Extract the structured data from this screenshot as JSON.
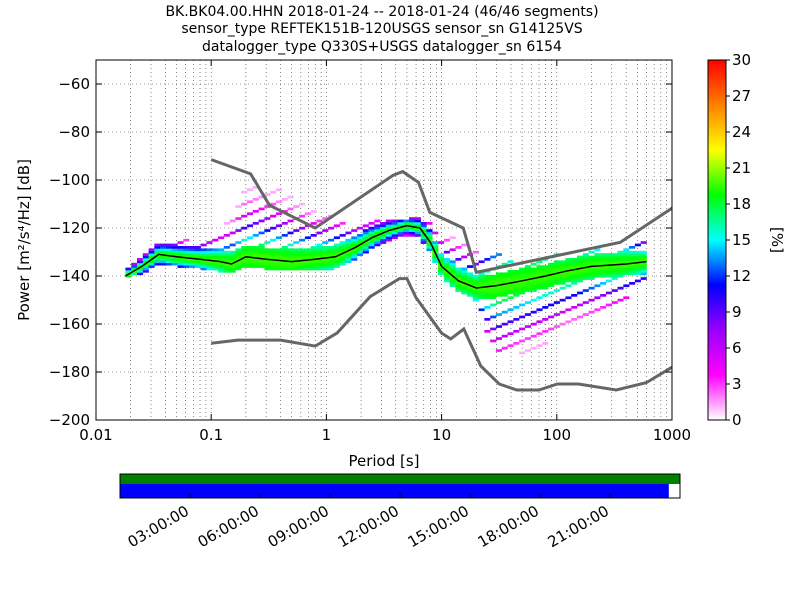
{
  "title_lines": [
    "BK.BK04.00.HHN   2018-01-24 -- 2018-01-24  (46/46 segments)",
    "sensor_type REFTEK151B-120USGS sensor_sn G14125VS",
    "datalogger_type Q330S+USGS datalogger_sn 6154"
  ],
  "chart_data": {
    "type": "heatmap",
    "xlabel": "Period [s]",
    "ylabel": "Power [m²/s⁴/Hz] [dB]",
    "xscale": "log",
    "xlim": [
      0.01,
      1000
    ],
    "ylim": [
      -200,
      -50
    ],
    "x_tick_labels": [
      "0.01",
      "0.1",
      "1",
      "10",
      "100",
      "1000"
    ],
    "y_tick_values": [
      -200,
      -180,
      -160,
      -140,
      -120,
      -100,
      -80,
      -60
    ],
    "y_tick_labels": [
      "−200",
      "−180",
      "−160",
      "−140",
      "−120",
      "−100",
      "−80",
      "−60"
    ],
    "colorbar": {
      "label": "[%]",
      "min": 0,
      "max": 30,
      "tick_labels": [
        "0",
        "3",
        "6",
        "9",
        "12",
        "15",
        "18",
        "21",
        "24",
        "27",
        "30"
      ],
      "colors": [
        "#ffffff",
        "#ff00ff",
        "#9900ff",
        "#0000ff",
        "#00ffff",
        "#00ff00",
        "#ffff00",
        "#ff8000",
        "#ff0000"
      ]
    },
    "noise_models": {
      "high": {
        "periods": [
          0.1,
          0.22,
          0.32,
          0.8,
          3.8,
          4.6,
          6.3,
          7.9,
          15.4,
          20,
          354.8,
          10000
        ],
        "power": [
          -91.5,
          -97.4,
          -110.5,
          -120,
          -98,
          -96.5,
          -101,
          -113.5,
          -120,
          -138.5,
          -126,
          -80.1
        ]
      },
      "low": {
        "periods": [
          0.1,
          0.17,
          0.4,
          0.8,
          1.24,
          2.4,
          4.3,
          5,
          6,
          10,
          12,
          15.6,
          21.9,
          31.6,
          45,
          70,
          101,
          154,
          328,
          600,
          1000
        ],
        "power": [
          -168,
          -166.7,
          -166.7,
          -169.2,
          -163.7,
          -148.6,
          -141.1,
          -141.1,
          -149,
          -163.8,
          -166.2,
          -162.1,
          -177.5,
          -185,
          -187.5,
          -187.5,
          -185,
          -185,
          -187.5,
          -184.4,
          -178
        ]
      }
    },
    "mode_curve": {
      "periods": [
        0.018,
        0.025,
        0.035,
        0.05,
        0.08,
        0.12,
        0.15,
        0.2,
        0.3,
        0.5,
        0.8,
        1.2,
        1.8,
        2.5,
        3.5,
        5,
        6.5,
        8,
        10,
        14,
        20,
        30,
        50,
        80,
        120,
        200,
        400,
        600
      ],
      "power": [
        -140,
        -136,
        -131,
        -132,
        -133,
        -134,
        -135,
        -132,
        -133,
        -134,
        -133,
        -132,
        -128,
        -124,
        -121,
        -119,
        -120,
        -126,
        -136,
        -142,
        -145,
        -144,
        -142,
        -140,
        -138,
        -136,
        -135,
        -134
      ]
    },
    "psd_cloud": {
      "periods": [
        0.018,
        0.025,
        0.035,
        0.05,
        0.08,
        0.12,
        0.15,
        0.2,
        0.3,
        0.5,
        0.8,
        1.2,
        1.8,
        2.5,
        3.5,
        5,
        6.5,
        8,
        10,
        14,
        20,
        30,
        50,
        80,
        120,
        200,
        400,
        600
      ],
      "min_power": [
        -141,
        -139,
        -135,
        -136,
        -137,
        -138,
        -139,
        -136,
        -137,
        -138,
        -137,
        -137,
        -133,
        -128,
        -125,
        -123,
        -124,
        -130,
        -140,
        -147,
        -152,
        -174,
        -172,
        -168,
        -160,
        -158,
        -150,
        -143
      ],
      "max_power": [
        -137,
        -132,
        -125,
        -125,
        -125,
        -120,
        -115,
        -103,
        -102,
        -106,
        -112,
        -114,
        -119,
        -117,
        -117,
        -116,
        -116,
        -117,
        -122,
        -125,
        -130,
        -130,
        -134,
        -132,
        -130,
        -129,
        -126,
        -126
      ]
    },
    "time_axis": {
      "tick_labels": [
        "03:00:00",
        "06:00:00",
        "09:00:00",
        "12:00:00",
        "15:00:00",
        "18:00:00",
        "21:00:00"
      ],
      "coverage_fraction": 0.98,
      "colors": {
        "top": "#008000",
        "bottom": "#0000ff"
      }
    }
  }
}
